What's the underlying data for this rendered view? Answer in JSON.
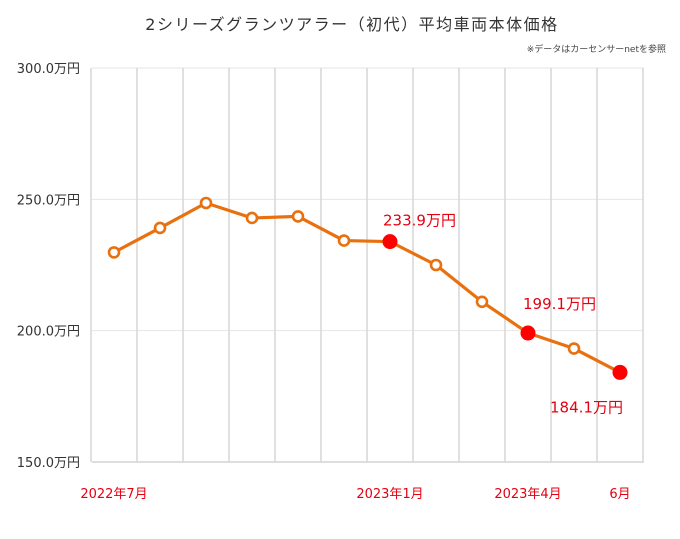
{
  "chart_data": {
    "type": "line",
    "title": "2シリーズグランツアラー（初代）平均車両本体価格",
    "note": "※データはカーセンサーnetを参照",
    "xlabel": "",
    "ylabel": "",
    "ylim": [
      150,
      300
    ],
    "yticks": [
      {
        "value": 300,
        "label": "300.0万円"
      },
      {
        "value": 250,
        "label": "250.0万円"
      },
      {
        "value": 200,
        "label": "200.0万円"
      },
      {
        "value": 150,
        "label": "150.0万円"
      }
    ],
    "x_tick_labels": [
      {
        "index": 0,
        "label": "2022年7月"
      },
      {
        "index": 6,
        "label": "2023年1月"
      },
      {
        "index": 9,
        "label": "2023年4月"
      },
      {
        "index": 11,
        "label": "6月"
      }
    ],
    "series": [
      {
        "name": "平均車両本体価格",
        "color": "#e9700f",
        "values": [
          229.8,
          239.1,
          248.6,
          242.9,
          243.5,
          234.3,
          233.9,
          225.0,
          211.0,
          199.1,
          193.2,
          184.1
        ]
      }
    ],
    "highlights": [
      {
        "index": 6,
        "label": "233.9万円"
      },
      {
        "index": 9,
        "label": "199.1万円"
      },
      {
        "index": 11,
        "label": "184.1万円"
      }
    ],
    "highlight_color": "#ff0000",
    "grid": true
  }
}
